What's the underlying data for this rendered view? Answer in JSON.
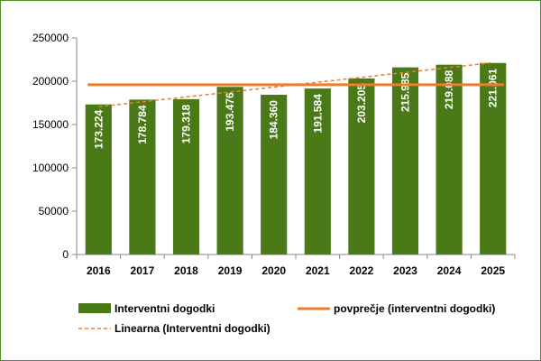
{
  "chart_data": {
    "type": "bar",
    "categories": [
      "2016",
      "2017",
      "2018",
      "2019",
      "2020",
      "2021",
      "2022",
      "2023",
      "2024",
      "2025"
    ],
    "series": [
      {
        "name": "Interventni dogodki",
        "values": [
          173224,
          178784,
          179318,
          193476,
          184360,
          191584,
          203205,
          215985,
          219088,
          221061
        ],
        "labels": [
          "173.224",
          "178.784",
          "179.318",
          "193.476",
          "184.360",
          "191.584",
          "203.205",
          "215.985",
          "219.088",
          "221.061"
        ],
        "color": "#4a7a17"
      },
      {
        "name": "povprečje (interventni dogodki)",
        "kind": "average-line",
        "value": 196008.5,
        "color": "#ed7d31"
      },
      {
        "name": "Linearna (Interventni dogodki)",
        "kind": "linear-trendline",
        "color": "#ed7d31",
        "style": "dashed"
      }
    ],
    "ylim": [
      0,
      250000
    ],
    "yticks": [
      "0",
      "50000",
      "100000",
      "150000",
      "200000",
      "250000"
    ],
    "grid": false,
    "legend_position": "bottom",
    "title": "",
    "xlabel": "",
    "ylabel": ""
  }
}
